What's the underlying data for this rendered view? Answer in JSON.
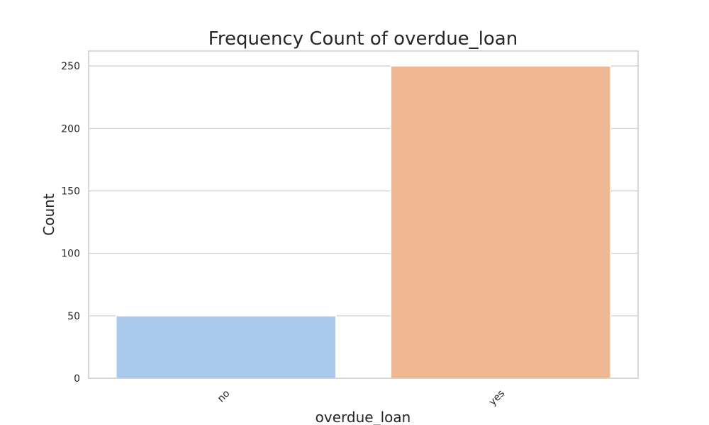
{
  "chart_data": {
    "type": "bar",
    "title": "Frequency Count of overdue_loan",
    "xlabel": "overdue_loan",
    "ylabel": "Count",
    "categories": [
      "no",
      "yes"
    ],
    "values": [
      50,
      250
    ],
    "ylim": [
      0,
      262
    ],
    "yticks": [
      0,
      50,
      100,
      150,
      200,
      250
    ],
    "colors": [
      "#abc9ea",
      "#efb792"
    ],
    "grid": true,
    "legend": "none"
  }
}
